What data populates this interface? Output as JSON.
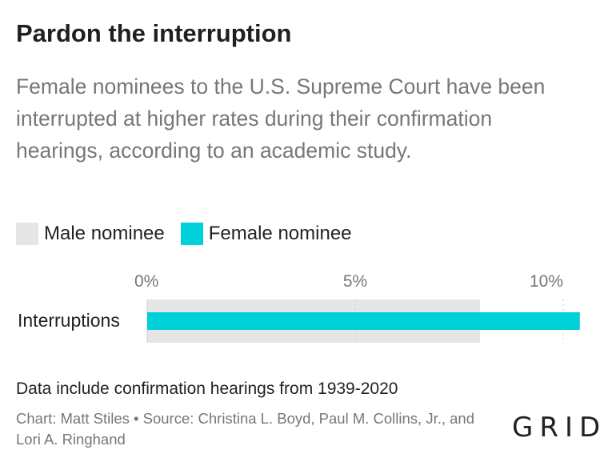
{
  "chart_data": {
    "type": "bar",
    "title": "Pardon the interruption",
    "subtitle": "Female nominees to the U.S. Supreme Court have been interrupted at higher rates during their confirmation hearings, according to an academic study.",
    "categories": [
      "Interruptions"
    ],
    "series": [
      {
        "name": "Male nominee",
        "values": [
          8.0
        ],
        "color": "#e6e6e6"
      },
      {
        "name": "Female nominee",
        "values": [
          10.4
        ],
        "color": "#00d0d8"
      }
    ],
    "xlim": [
      0,
      10
    ],
    "ticks": [
      {
        "value": 0,
        "label": "0%"
      },
      {
        "value": 5,
        "label": "5%"
      },
      {
        "value": 10,
        "label": "10%"
      }
    ],
    "legend_position": "top-left",
    "note": "Data include confirmation hearings from 1939-2020",
    "source": "Chart: Matt Stiles • Source: Christina L. Boyd, Paul M. Collins, Jr., and Lori A. Ringhand"
  },
  "brand": {
    "logo_text": "GRID"
  }
}
